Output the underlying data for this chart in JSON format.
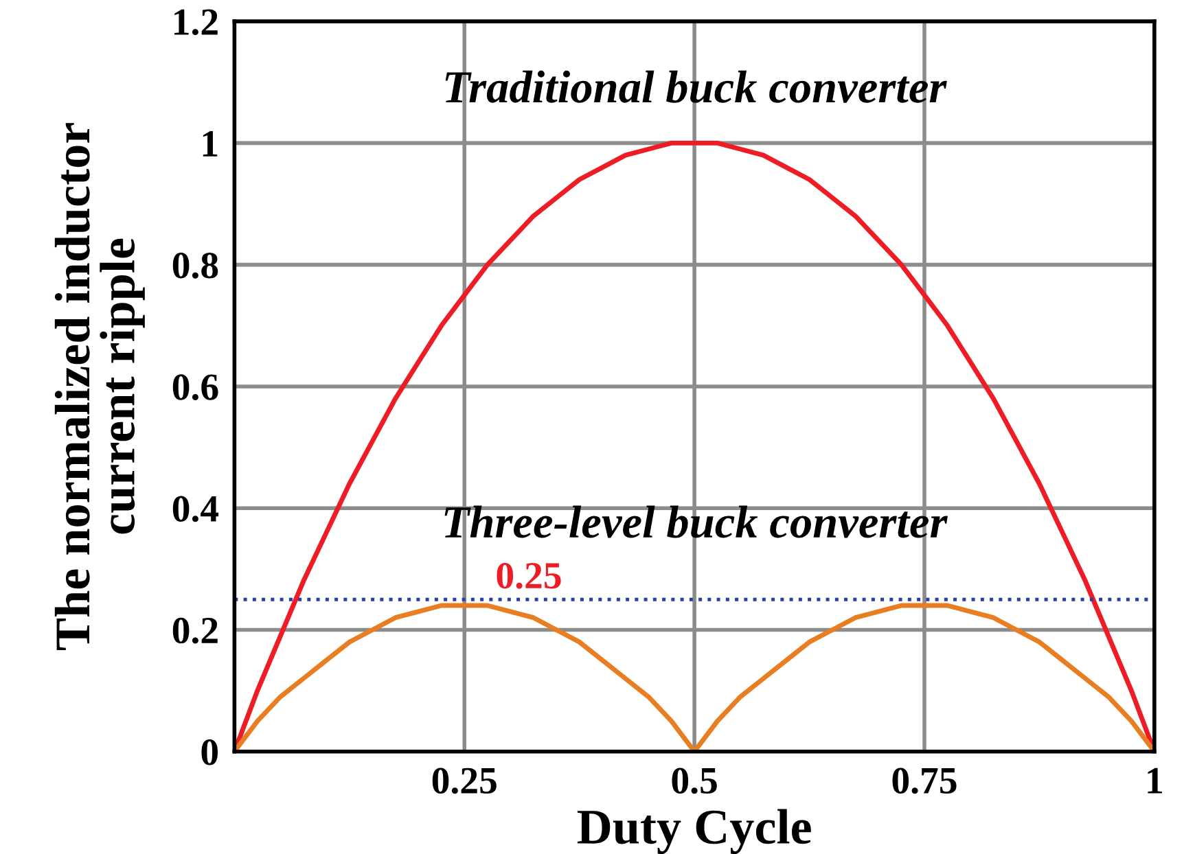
{
  "chart_data": {
    "type": "line",
    "xlabel": "Duty Cycle",
    "ylabel": "The normalized inductor\ncurrent ripple",
    "xlim": [
      0,
      1
    ],
    "ylim": [
      0,
      1.2
    ],
    "xticks": [
      {
        "value": 0,
        "label": null
      },
      0.25,
      0.5,
      0.75,
      1
    ],
    "yticks": [
      0,
      0.2,
      0.4,
      0.6,
      0.8,
      1,
      1.2
    ],
    "grid": true,
    "legend": false,
    "marker": "none",
    "line_style": "solid",
    "series": [
      {
        "name": "Traditional buck converter",
        "color": "#ee1c25",
        "x": [
          0,
          0.025,
          0.05,
          0.075,
          0.1,
          0.125,
          0.15,
          0.175,
          0.2,
          0.225,
          0.25,
          0.275,
          0.3,
          0.325,
          0.35,
          0.375,
          0.4,
          0.425,
          0.45,
          0.475,
          0.5,
          0.525,
          0.55,
          0.575,
          0.6,
          0.625,
          0.65,
          0.675,
          0.7,
          0.725,
          0.75,
          0.775,
          0.8,
          0.825,
          0.85,
          0.875,
          0.9,
          0.925,
          0.95,
          0.975,
          1
        ],
        "values": [
          0,
          0.1,
          0.19,
          0.28,
          0.36,
          0.44,
          0.51,
          0.58,
          0.64,
          0.7,
          0.75,
          0.8,
          0.84,
          0.88,
          0.91,
          0.94,
          0.96,
          0.98,
          0.99,
          1.0,
          1.0,
          1.0,
          0.99,
          0.98,
          0.96,
          0.94,
          0.91,
          0.88,
          0.84,
          0.8,
          0.75,
          0.7,
          0.64,
          0.58,
          0.51,
          0.44,
          0.36,
          0.28,
          0.19,
          0.1,
          0
        ]
      },
      {
        "name": "Three-level buck converter",
        "color": "#e97d22",
        "x": [
          0,
          0.025,
          0.05,
          0.075,
          0.1,
          0.125,
          0.15,
          0.175,
          0.2,
          0.225,
          0.25,
          0.275,
          0.3,
          0.325,
          0.35,
          0.375,
          0.4,
          0.425,
          0.45,
          0.475,
          0.5,
          0.525,
          0.55,
          0.575,
          0.6,
          0.625,
          0.65,
          0.675,
          0.7,
          0.725,
          0.75,
          0.775,
          0.8,
          0.825,
          0.85,
          0.875,
          0.9,
          0.925,
          0.95,
          0.975,
          1
        ],
        "values": [
          0,
          0.05,
          0.09,
          0.12,
          0.15,
          0.18,
          0.2,
          0.22,
          0.23,
          0.24,
          0.24,
          0.24,
          0.23,
          0.22,
          0.2,
          0.18,
          0.15,
          0.12,
          0.09,
          0.05,
          0,
          0.05,
          0.09,
          0.12,
          0.15,
          0.18,
          0.2,
          0.22,
          0.23,
          0.24,
          0.24,
          0.24,
          0.23,
          0.22,
          0.2,
          0.18,
          0.15,
          0.12,
          0.09,
          0.05,
          0
        ]
      }
    ],
    "ref_lines": [
      {
        "axis": "y",
        "value": 0.25,
        "label": "0.25",
        "color": "#2b3f9e",
        "line_style": "dotted"
      }
    ]
  }
}
